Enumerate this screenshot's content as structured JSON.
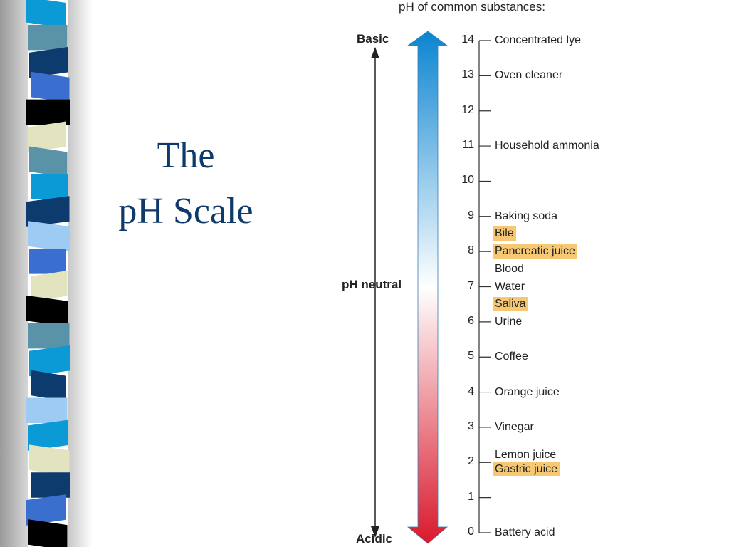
{
  "title": {
    "line1": "The",
    "line2": "pH Scale"
  },
  "diagram": {
    "caption": "pH of common substances:",
    "basic_label": "Basic",
    "neutral_label": "pH neutral",
    "acidic_label": "Acidic",
    "ticks": [
      "0",
      "1",
      "2",
      "3",
      "4",
      "5",
      "6",
      "7",
      "8",
      "9",
      "10",
      "11",
      "12",
      "13",
      "14"
    ],
    "substances": [
      {
        "name": "Concentrated lye",
        "ph": 14,
        "highlighted": false
      },
      {
        "name": "Oven cleaner",
        "ph": 13,
        "highlighted": false
      },
      {
        "name": "Household ammonia",
        "ph": 11,
        "highlighted": false
      },
      {
        "name": "Baking soda",
        "ph": 9,
        "highlighted": false
      },
      {
        "name": "Bile",
        "ph": 8.5,
        "highlighted": true
      },
      {
        "name": "Pancreatic juice",
        "ph": 8,
        "highlighted": true
      },
      {
        "name": "Blood",
        "ph": 7.5,
        "highlighted": false
      },
      {
        "name": "Water",
        "ph": 7,
        "highlighted": false
      },
      {
        "name": "Saliva",
        "ph": 6.5,
        "highlighted": true
      },
      {
        "name": "Urine",
        "ph": 6,
        "highlighted": false
      },
      {
        "name": "Coffee",
        "ph": 5,
        "highlighted": false
      },
      {
        "name": "Orange juice",
        "ph": 4,
        "highlighted": false
      },
      {
        "name": "Vinegar",
        "ph": 3,
        "highlighted": false
      },
      {
        "name": "Lemon juice",
        "ph": 2.2,
        "highlighted": false
      },
      {
        "name": "Gastric juice",
        "ph": 1.8,
        "highlighted": true
      },
      {
        "name": "Battery acid",
        "ph": 0,
        "highlighted": false
      }
    ],
    "colors": {
      "basic": "#0a84d0",
      "neutral": "#ffffff",
      "acidic": "#d9192b",
      "highlight": "#f6c873",
      "title": "#0d3a6b"
    }
  },
  "decoration": {
    "strip_colors": [
      "#0b9ad6",
      "#5a92a8",
      "#0d3b6e",
      "#3a6fd0",
      "#000000",
      "#e2e3bf",
      "#5a92a8",
      "#0b9ad6",
      "#0d3b6e",
      "#9ecbf4",
      "#3a6fd0",
      "#e2e3bf",
      "#000000",
      "#5a92a8",
      "#0b9ad6",
      "#0d3b6e",
      "#9ecbf4",
      "#0b9ad6",
      "#e2e3bf",
      "#0d3b6e",
      "#3a6fd0",
      "#000000"
    ]
  }
}
